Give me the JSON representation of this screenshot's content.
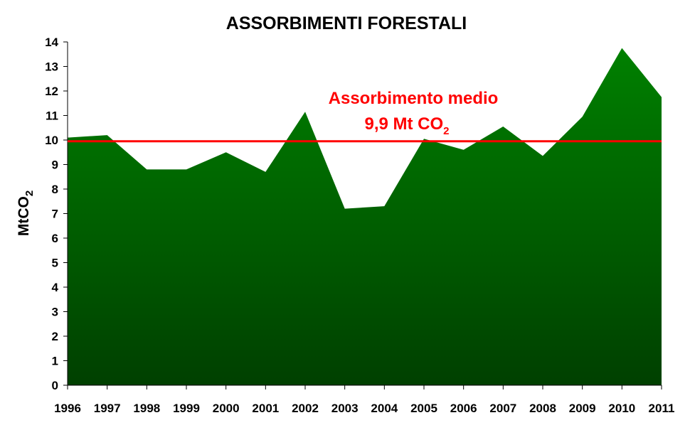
{
  "chart_data": {
    "type": "area",
    "title": "ASSORBIMENTI FORESTALI",
    "ylabel": "MtCO",
    "ylabel_subscript": "2",
    "xlabel": "",
    "x": [
      "1996",
      "1997",
      "1998",
      "1999",
      "2000",
      "2001",
      "2002",
      "2003",
      "2004",
      "2005",
      "2006",
      "2007",
      "2008",
      "2009",
      "2010",
      "2011"
    ],
    "values": [
      10.1,
      10.2,
      8.8,
      8.8,
      9.5,
      8.7,
      11.15,
      7.2,
      7.3,
      10.05,
      9.6,
      10.55,
      9.35,
      10.95,
      13.75,
      11.75
    ],
    "ylim": [
      0,
      14
    ],
    "yticks": [
      "0",
      "1",
      "2",
      "3",
      "4",
      "5",
      "6",
      "7",
      "8",
      "9",
      "10",
      "11",
      "12",
      "13",
      "14"
    ],
    "grid": false,
    "legend": "none",
    "colors": {
      "area_top": "#008000",
      "area_bottom": "#004000",
      "mean_line": "#ff0000",
      "annotation": "#ff0000"
    },
    "reference_line": {
      "value": 9.95,
      "label_line1": "Assorbimento medio",
      "label_line2": "9,9 Mt CO",
      "label_line2_subscript": "2"
    }
  }
}
